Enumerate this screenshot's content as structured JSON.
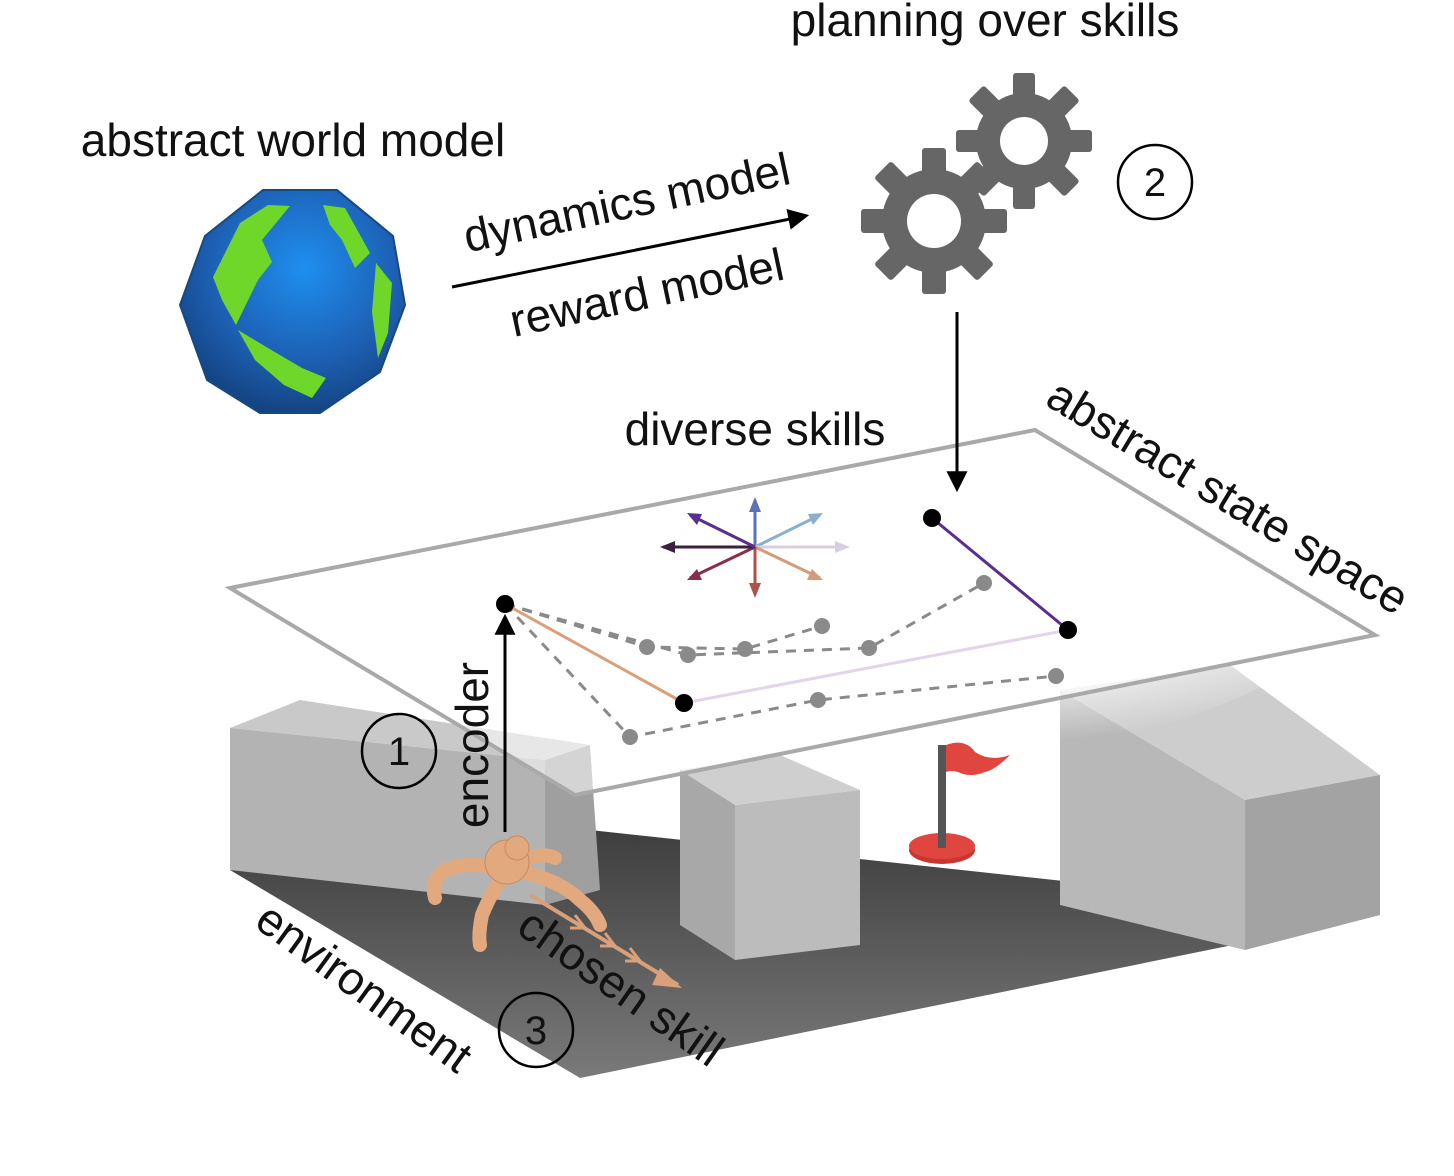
{
  "labels": {
    "planning": "planning over skills",
    "world_model": "abstract world model",
    "dynamics": "dynamics model",
    "reward": "reward model",
    "diverse_skills": "diverse skills",
    "state_space": "abstract state space",
    "encoder": "encoder",
    "environment": "environment",
    "chosen_skill": "chosen skill"
  },
  "steps": {
    "one": "1",
    "two": "2",
    "three": "3"
  },
  "colors": {
    "globe_ocean": "#1f6fc9",
    "globe_land": "#6fd62a",
    "gear": "#6a6a6a",
    "plane_border": "#a9a9a9",
    "block": "#bdbdbd",
    "floor": "#5a5a5a",
    "flag": "#e0453f",
    "agent": "#e3a97e",
    "skill_line": "#5b2d8e",
    "chosen_line": "#d9a07a"
  },
  "icons": [
    "globe-icon",
    "gears-icon",
    "flag-icon",
    "agent-icon",
    "skill-compass-icon"
  ]
}
